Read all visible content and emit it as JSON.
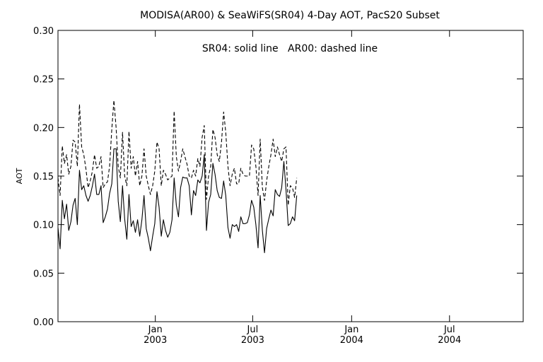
{
  "chart_data": {
    "type": "line",
    "title": "MODISA(AR00) & SeaWiFS(SR04) 4-Day AOT, PacS20 Subset",
    "annotation": "SR04: solid line   AR00: dashed line",
    "xlabel": "",
    "ylabel": "AOT",
    "xlim": [
      "2002-07-04",
      "2004-11-15"
    ],
    "ylim": [
      0.0,
      0.3
    ],
    "y_ticks": [
      "0.00",
      "0.05",
      "0.10",
      "0.15",
      "0.20",
      "0.25",
      "0.30"
    ],
    "x_ticks": [
      {
        "date": "2003-01-01",
        "month": "Jan",
        "year": "2003"
      },
      {
        "date": "2003-07-01",
        "month": "Jul",
        "year": "2003"
      },
      {
        "date": "2004-01-01",
        "month": "Jan",
        "year": "2004"
      },
      {
        "date": "2004-07-01",
        "month": "Jul",
        "year": "2004"
      }
    ],
    "grid": false,
    "series": [
      {
        "name": "SR04",
        "style": "solid",
        "color": "#000000",
        "points": [
          [
            "2002-07-04",
            0.097
          ],
          [
            "2002-07-08",
            0.075
          ],
          [
            "2002-07-12",
            0.125
          ],
          [
            "2002-07-16",
            0.106
          ],
          [
            "2002-07-20",
            0.121
          ],
          [
            "2002-07-24",
            0.094
          ],
          [
            "2002-07-28",
            0.103
          ],
          [
            "2002-08-01",
            0.12
          ],
          [
            "2002-08-05",
            0.127
          ],
          [
            "2002-08-09",
            0.1
          ],
          [
            "2002-08-13",
            0.156
          ],
          [
            "2002-08-17",
            0.136
          ],
          [
            "2002-08-21",
            0.14
          ],
          [
            "2002-08-25",
            0.13
          ],
          [
            "2002-08-29",
            0.124
          ],
          [
            "2002-09-02",
            0.13
          ],
          [
            "2002-09-06",
            0.14
          ],
          [
            "2002-09-10",
            0.152
          ],
          [
            "2002-09-14",
            0.131
          ],
          [
            "2002-09-18",
            0.131
          ],
          [
            "2002-09-22",
            0.14
          ],
          [
            "2002-09-26",
            0.102
          ],
          [
            "2002-09-30",
            0.108
          ],
          [
            "2002-10-04",
            0.116
          ],
          [
            "2002-10-08",
            0.132
          ],
          [
            "2002-10-12",
            0.142
          ],
          [
            "2002-10-16",
            0.178
          ],
          [
            "2002-10-20",
            0.178
          ],
          [
            "2002-10-24",
            0.124
          ],
          [
            "2002-10-28",
            0.103
          ],
          [
            "2002-11-01",
            0.14
          ],
          [
            "2002-11-05",
            0.106
          ],
          [
            "2002-11-09",
            0.085
          ],
          [
            "2002-11-13",
            0.131
          ],
          [
            "2002-11-17",
            0.098
          ],
          [
            "2002-11-21",
            0.104
          ],
          [
            "2002-11-25",
            0.092
          ],
          [
            "2002-11-29",
            0.105
          ],
          [
            "2002-12-03",
            0.088
          ],
          [
            "2002-12-07",
            0.105
          ],
          [
            "2002-12-11",
            0.13
          ],
          [
            "2002-12-15",
            0.096
          ],
          [
            "2002-12-19",
            0.086
          ],
          [
            "2002-12-23",
            0.073
          ],
          [
            "2002-12-27",
            0.088
          ],
          [
            "2002-12-31",
            0.101
          ],
          [
            "2003-01-04",
            0.134
          ],
          [
            "2003-01-08",
            0.118
          ],
          [
            "2003-01-12",
            0.088
          ],
          [
            "2003-01-16",
            0.105
          ],
          [
            "2003-01-20",
            0.094
          ],
          [
            "2003-01-24",
            0.087
          ],
          [
            "2003-01-28",
            0.092
          ],
          [
            "2003-02-01",
            0.105
          ],
          [
            "2003-02-05",
            0.148
          ],
          [
            "2003-02-09",
            0.12
          ],
          [
            "2003-02-13",
            0.108
          ],
          [
            "2003-02-17",
            0.138
          ],
          [
            "2003-02-21",
            0.149
          ],
          [
            "2003-02-25",
            0.148
          ],
          [
            "2003-03-01",
            0.148
          ],
          [
            "2003-03-05",
            0.14
          ],
          [
            "2003-03-09",
            0.11
          ],
          [
            "2003-03-13",
            0.135
          ],
          [
            "2003-03-17",
            0.13
          ],
          [
            "2003-03-21",
            0.146
          ],
          [
            "2003-03-25",
            0.143
          ],
          [
            "2003-03-29",
            0.15
          ],
          [
            "2003-04-02",
            0.172
          ],
          [
            "2003-04-06",
            0.094
          ],
          [
            "2003-04-10",
            0.123
          ],
          [
            "2003-04-14",
            0.131
          ],
          [
            "2003-04-18",
            0.163
          ],
          [
            "2003-04-22",
            0.152
          ],
          [
            "2003-04-26",
            0.135
          ],
          [
            "2003-04-30",
            0.128
          ],
          [
            "2003-05-04",
            0.127
          ],
          [
            "2003-05-08",
            0.145
          ],
          [
            "2003-05-12",
            0.13
          ],
          [
            "2003-05-16",
            0.097
          ],
          [
            "2003-05-20",
            0.086
          ],
          [
            "2003-05-24",
            0.1
          ],
          [
            "2003-05-28",
            0.098
          ],
          [
            "2003-06-01",
            0.1
          ],
          [
            "2003-06-05",
            0.093
          ],
          [
            "2003-06-09",
            0.108
          ],
          [
            "2003-06-13",
            0.101
          ],
          [
            "2003-06-17",
            0.101
          ],
          [
            "2003-06-21",
            0.102
          ],
          [
            "2003-06-25",
            0.11
          ],
          [
            "2003-06-29",
            0.125
          ],
          [
            "2003-07-03",
            0.118
          ],
          [
            "2003-07-07",
            0.1
          ],
          [
            "2003-07-11",
            0.076
          ],
          [
            "2003-07-15",
            0.13
          ],
          [
            "2003-07-19",
            0.094
          ],
          [
            "2003-07-23",
            0.071
          ],
          [
            "2003-07-27",
            0.096
          ],
          [
            "2003-07-31",
            0.106
          ],
          [
            "2003-08-04",
            0.115
          ],
          [
            "2003-08-08",
            0.109
          ],
          [
            "2003-08-12",
            0.136
          ],
          [
            "2003-08-16",
            0.131
          ],
          [
            "2003-08-20",
            0.129
          ],
          [
            "2003-08-24",
            0.138
          ],
          [
            "2003-08-28",
            0.165
          ],
          [
            "2003-09-01",
            0.136
          ],
          [
            "2003-09-05",
            0.099
          ],
          [
            "2003-09-09",
            0.101
          ],
          [
            "2003-09-13",
            0.108
          ],
          [
            "2003-09-17",
            0.104
          ],
          [
            "2003-09-21",
            0.13
          ]
        ]
      },
      {
        "name": "AR00",
        "style": "dashed",
        "color": "#000000",
        "points": [
          [
            "2002-07-04",
            0.148
          ],
          [
            "2002-07-08",
            0.13
          ],
          [
            "2002-07-12",
            0.181
          ],
          [
            "2002-07-16",
            0.163
          ],
          [
            "2002-07-20",
            0.172
          ],
          [
            "2002-07-24",
            0.152
          ],
          [
            "2002-07-28",
            0.16
          ],
          [
            "2002-08-01",
            0.187
          ],
          [
            "2002-08-05",
            0.185
          ],
          [
            "2002-08-09",
            0.16
          ],
          [
            "2002-08-13",
            0.224
          ],
          [
            "2002-08-17",
            0.18
          ],
          [
            "2002-08-21",
            0.172
          ],
          [
            "2002-08-25",
            0.157
          ],
          [
            "2002-08-29",
            0.138
          ],
          [
            "2002-09-02",
            0.145
          ],
          [
            "2002-09-06",
            0.155
          ],
          [
            "2002-09-10",
            0.172
          ],
          [
            "2002-09-14",
            0.158
          ],
          [
            "2002-09-18",
            0.16
          ],
          [
            "2002-09-22",
            0.17
          ],
          [
            "2002-09-26",
            0.138
          ],
          [
            "2002-09-30",
            0.142
          ],
          [
            "2002-10-04",
            0.144
          ],
          [
            "2002-10-08",
            0.16
          ],
          [
            "2002-10-12",
            0.198
          ],
          [
            "2002-10-16",
            0.228
          ],
          [
            "2002-10-20",
            0.2
          ],
          [
            "2002-10-24",
            0.16
          ],
          [
            "2002-10-28",
            0.148
          ],
          [
            "2002-11-01",
            0.195
          ],
          [
            "2002-11-05",
            0.15
          ],
          [
            "2002-11-09",
            0.14
          ],
          [
            "2002-11-13",
            0.196
          ],
          [
            "2002-11-17",
            0.158
          ],
          [
            "2002-11-21",
            0.17
          ],
          [
            "2002-11-25",
            0.15
          ],
          [
            "2002-11-29",
            0.165
          ],
          [
            "2002-12-03",
            0.14
          ],
          [
            "2002-12-07",
            0.15
          ],
          [
            "2002-12-11",
            0.178
          ],
          [
            "2002-12-15",
            0.15
          ],
          [
            "2002-12-19",
            0.14
          ],
          [
            "2002-12-23",
            0.131
          ],
          [
            "2002-12-27",
            0.14
          ],
          [
            "2002-12-31",
            0.155
          ],
          [
            "2003-01-04",
            0.185
          ],
          [
            "2003-01-08",
            0.178
          ],
          [
            "2003-01-12",
            0.14
          ],
          [
            "2003-01-16",
            0.156
          ],
          [
            "2003-01-20",
            0.152
          ],
          [
            "2003-01-24",
            0.146
          ],
          [
            "2003-01-28",
            0.148
          ],
          [
            "2003-02-01",
            0.15
          ],
          [
            "2003-02-05",
            0.217
          ],
          [
            "2003-02-09",
            0.17
          ],
          [
            "2003-02-13",
            0.155
          ],
          [
            "2003-02-17",
            0.165
          ],
          [
            "2003-02-21",
            0.178
          ],
          [
            "2003-02-25",
            0.17
          ],
          [
            "2003-03-01",
            0.162
          ],
          [
            "2003-03-05",
            0.15
          ],
          [
            "2003-03-09",
            0.148
          ],
          [
            "2003-03-13",
            0.156
          ],
          [
            "2003-03-17",
            0.15
          ],
          [
            "2003-03-21",
            0.168
          ],
          [
            "2003-03-25",
            0.16
          ],
          [
            "2003-03-29",
            0.19
          ],
          [
            "2003-04-02",
            0.202
          ],
          [
            "2003-04-06",
            0.126
          ],
          [
            "2003-04-10",
            0.15
          ],
          [
            "2003-04-14",
            0.16
          ],
          [
            "2003-04-18",
            0.198
          ],
          [
            "2003-04-22",
            0.19
          ],
          [
            "2003-04-26",
            0.172
          ],
          [
            "2003-04-30",
            0.165
          ],
          [
            "2003-05-04",
            0.185
          ],
          [
            "2003-05-08",
            0.216
          ],
          [
            "2003-05-12",
            0.195
          ],
          [
            "2003-05-16",
            0.16
          ],
          [
            "2003-05-20",
            0.14
          ],
          [
            "2003-05-24",
            0.152
          ],
          [
            "2003-05-28",
            0.158
          ],
          [
            "2003-06-01",
            0.142
          ],
          [
            "2003-06-05",
            0.142
          ],
          [
            "2003-06-09",
            0.158
          ],
          [
            "2003-06-13",
            0.152
          ],
          [
            "2003-06-17",
            0.15
          ],
          [
            "2003-06-21",
            0.15
          ],
          [
            "2003-06-25",
            0.15
          ],
          [
            "2003-06-29",
            0.182
          ],
          [
            "2003-07-03",
            0.178
          ],
          [
            "2003-07-07",
            0.16
          ],
          [
            "2003-07-11",
            0.13
          ],
          [
            "2003-07-15",
            0.188
          ],
          [
            "2003-07-19",
            0.138
          ],
          [
            "2003-07-23",
            0.125
          ],
          [
            "2003-07-27",
            0.145
          ],
          [
            "2003-07-31",
            0.16
          ],
          [
            "2003-08-04",
            0.172
          ],
          [
            "2003-08-08",
            0.188
          ],
          [
            "2003-08-12",
            0.17
          ],
          [
            "2003-08-16",
            0.18
          ],
          [
            "2003-08-20",
            0.172
          ],
          [
            "2003-08-24",
            0.165
          ],
          [
            "2003-08-28",
            0.178
          ],
          [
            "2003-09-01",
            0.18
          ],
          [
            "2003-09-05",
            0.12
          ],
          [
            "2003-09-09",
            0.14
          ],
          [
            "2003-09-13",
            0.138
          ],
          [
            "2003-09-17",
            0.128
          ],
          [
            "2003-09-21",
            0.148
          ]
        ]
      }
    ]
  }
}
